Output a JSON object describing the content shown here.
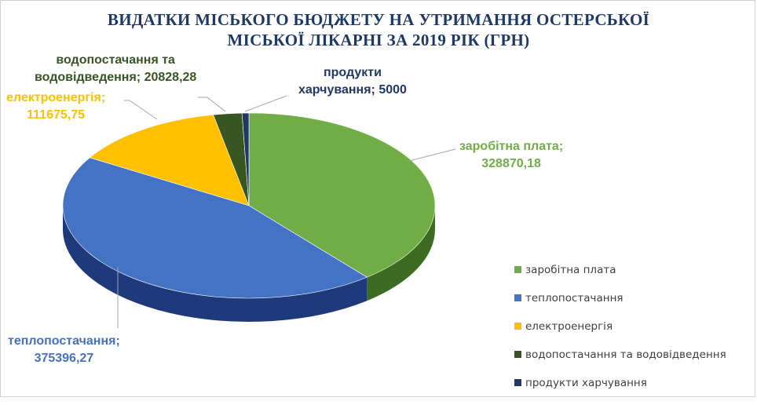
{
  "chart_data": {
    "type": "pie",
    "title_lines": [
      "ВИДАТКИ МІСЬКОГО БЮДЖЕТУ НА УТРИМАННЯ ОСТЕРСЬКОЇ",
      "МІСЬКОЇ ЛІКАРНІ ЗА 2019 РІК (ГРН)"
    ],
    "slices": [
      {
        "name": "заробітна плата",
        "value": 328870.18,
        "value_label": "328870,18",
        "color": "#70ad47",
        "side_color": "#3d6b22"
      },
      {
        "name": "теплопостачання",
        "value": 375396.27,
        "value_label": "375396,27",
        "color": "#4472c4",
        "side_color": "#1f3a7a"
      },
      {
        "name": "електроенергія",
        "value": 111675.75,
        "value_label": "111675,75",
        "color": "#ffc000",
        "side_color": "#a67c00"
      },
      {
        "name": "водопостачання та водовідведення",
        "value": 20828.28,
        "value_label": "20828,28",
        "color": "#375623",
        "side_color": "#1e3312"
      },
      {
        "name": "продукти харчування",
        "value": 5000,
        "value_label": "5000",
        "color": "#203864",
        "side_color": "#101d36"
      }
    ],
    "data_labels": [
      {
        "lines": [
          "заробітна плата;",
          "328870,18"
        ],
        "color": "#70ad47"
      },
      {
        "lines": [
          "теплопостачання;",
          "375396,27"
        ],
        "color": "#4472c4"
      },
      {
        "lines": [
          "електроенергія;",
          "111675,75"
        ],
        "color": "#ffc000"
      },
      {
        "lines": [
          "водопостачання та",
          "водовідведення; 20828,28"
        ],
        "color": "#375623"
      },
      {
        "lines": [
          "продукти",
          "харчування; 5000"
        ],
        "color": "#203864"
      }
    ],
    "legend": {
      "position": "bottom-right",
      "entries": [
        "заробітна плата",
        "теплопостачання",
        "електроенергія",
        "водопостачання та водовідведення",
        "продукти харчування"
      ]
    }
  }
}
